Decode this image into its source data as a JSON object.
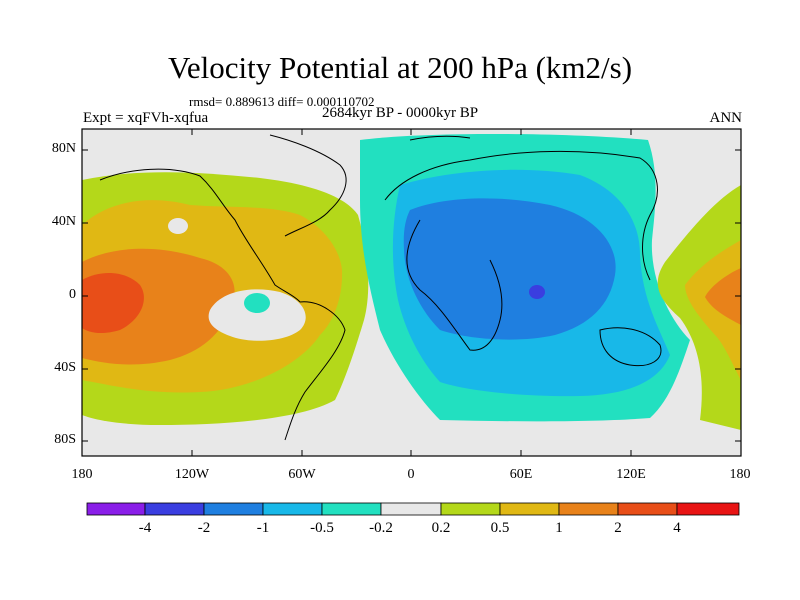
{
  "title": "Velocity Potential at 200 hPa (km2/s)",
  "stats": "rmsd= 0.889613 diff= 0.000110702",
  "period": "2684kyr BP - 0000kyr BP",
  "expt": "Expt = xqFVh-xqfua",
  "season": "ANN",
  "lat_labels": [
    "80N",
    "40N",
    "0",
    "40S",
    "80S"
  ],
  "lon_labels": [
    "180",
    "120W",
    "60W",
    "0",
    "60E",
    "120E",
    "180"
  ],
  "colorbar": {
    "labels": [
      "-4",
      "-2",
      "-1",
      "-0.5",
      "-0.2",
      "0.2",
      "0.5",
      "1",
      "2",
      "4"
    ],
    "colors": [
      "#8a1ee8",
      "#3a3ee0",
      "#1f7fe0",
      "#18b8e8",
      "#22e0c0",
      "#e8e8e8",
      "#b4d81a",
      "#e0b814",
      "#e8821a",
      "#e84e18",
      "#e81414"
    ]
  }
}
